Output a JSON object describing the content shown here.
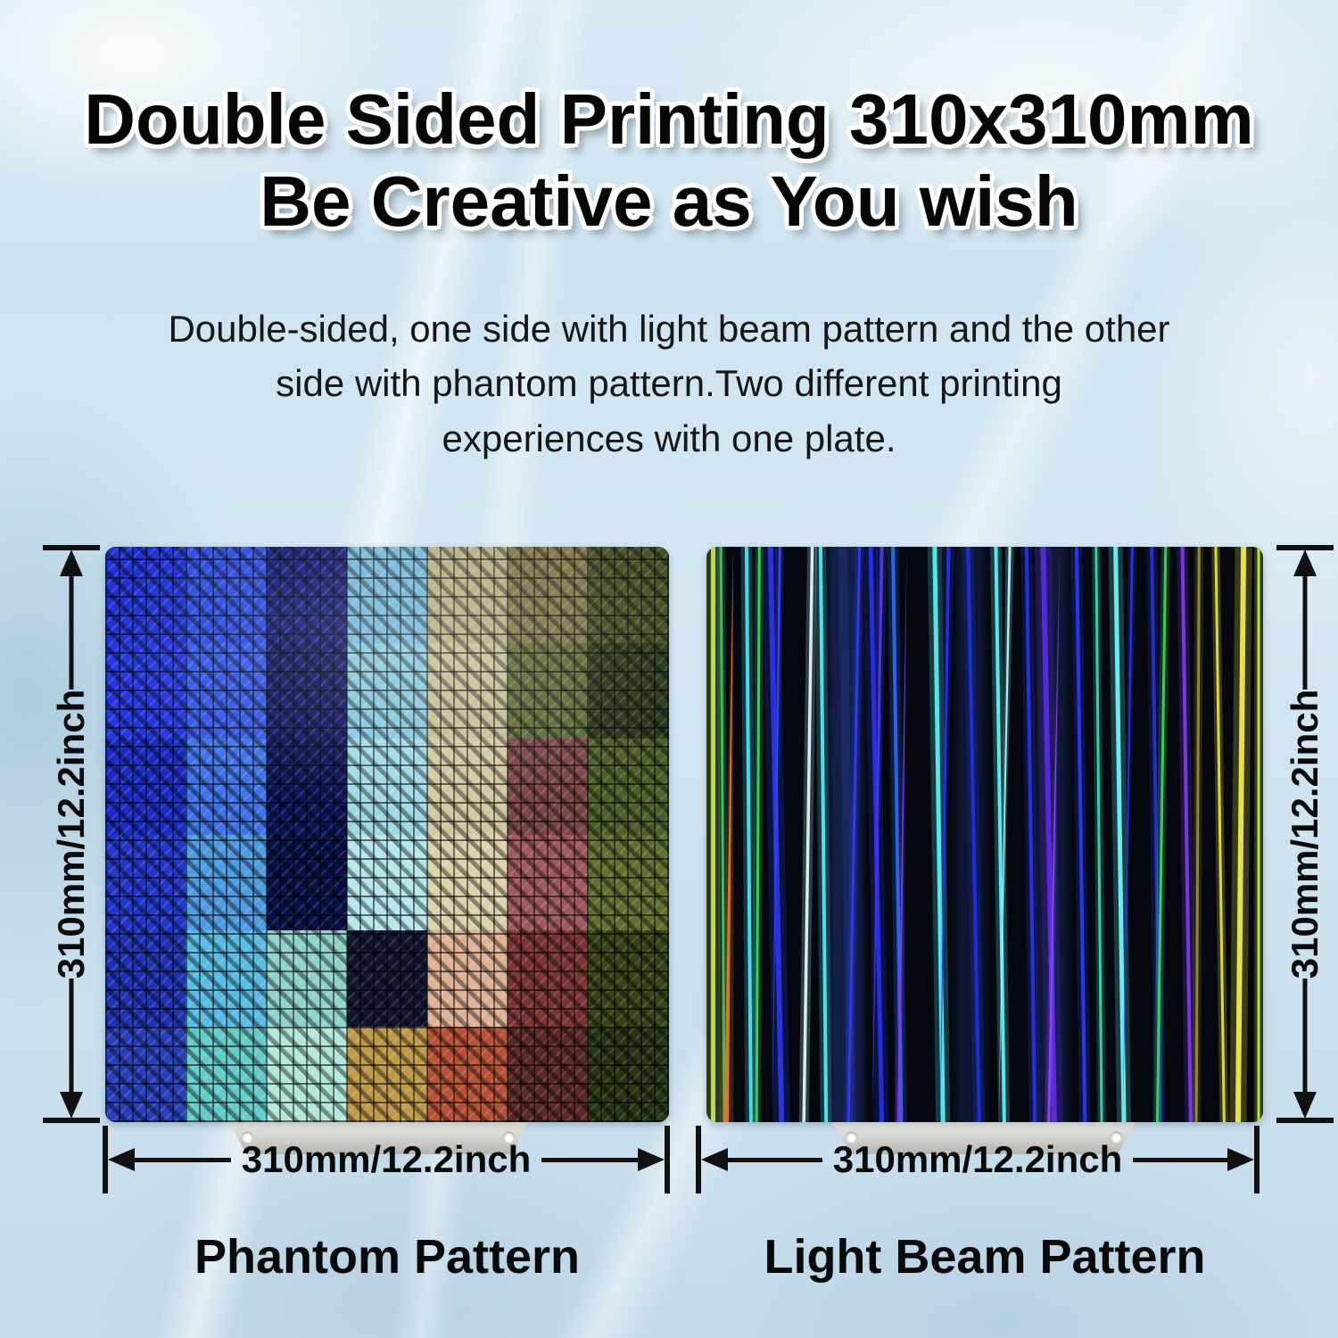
{
  "title": {
    "line1": "Double Sided Printing 310x310mm",
    "line2": "Be Creative as You wish"
  },
  "subtitle": {
    "lines": [
      "Double-sided, one side with light beam pattern and the other",
      "side with phantom pattern.Two different printing",
      "experiences with one plate."
    ]
  },
  "dimensions": {
    "left_height": "310mm/12.2inch",
    "left_width": "310mm/12.2inch",
    "right_height": "310mm/12.2inch",
    "right_width": "310mm/12.2inch"
  },
  "plates": {
    "left": {
      "label": "Phantom Pattern",
      "pattern_grid": [
        [
          "#1f33d6",
          "#2a4be0",
          "#131c7a",
          "#6fb6d8",
          "#b4ae7e",
          "#7f7444",
          "#454f22"
        ],
        [
          "#2438e0",
          "#3358e8",
          "#0f1866",
          "#84c8dc",
          "#c6bd92",
          "#5d6c34",
          "#2c381a"
        ],
        [
          "#1b2cc4",
          "#3f74e8",
          "#0c145a",
          "#9edae6",
          "#d2c8a0",
          "#7c4648",
          "#4e602a"
        ],
        [
          "#2137cc",
          "#4f9ce4",
          "#0a1148",
          "#b4e8ec",
          "#dcd2aa",
          "#a05a5e",
          "#5f7030"
        ],
        [
          "#1e32b4",
          "#58bce4",
          "#8ed4cc",
          "#12172e",
          "#e0b294",
          "#7c3434",
          "#364418"
        ],
        [
          "#2640bc",
          "#64ccca",
          "#b2e8da",
          "#c09a48",
          "#b85236",
          "#5c2a26",
          "#283614"
        ]
      ]
    },
    "right": {
      "label": "Light Beam Pattern",
      "background": "#06080f",
      "beams": [
        {
          "t": 1.2,
          "b": 1.2,
          "w": 5,
          "c": "#c6e83c",
          "taper": "none"
        },
        {
          "t": 2.6,
          "b": 3.2,
          "w": 3,
          "c": "#35c86a",
          "taper": "none"
        },
        {
          "t": 4.8,
          "b": 3.6,
          "w": 5,
          "c": "#e87a22",
          "taper": "top"
        },
        {
          "t": 7.2,
          "b": 8.0,
          "w": 4,
          "c": "#4ae4f0",
          "taper": "none"
        },
        {
          "t": 9.5,
          "b": 9.0,
          "w": 3,
          "c": "#38d860",
          "taper": "none"
        },
        {
          "t": 11.5,
          "b": 13.5,
          "w": 6,
          "c": "#2a35e8",
          "taper": "none"
        },
        {
          "t": 13.2,
          "b": 11.8,
          "w": 3,
          "c": "#3a46f0",
          "taper": "bottom"
        },
        {
          "t": 19.0,
          "b": 17.5,
          "w": 3.5,
          "c": "#d8f8ff",
          "taper": "none"
        },
        {
          "t": 20.5,
          "b": 21.5,
          "w": 4,
          "c": "#52e8f5",
          "taper": "none"
        },
        {
          "t": 24.5,
          "b": 26.0,
          "w": 10,
          "c": "#1b2a66",
          "o": 0.9,
          "taper": "none"
        },
        {
          "t": 27.5,
          "b": 25.5,
          "w": 3,
          "c": "#2e3cf0",
          "taper": "none"
        },
        {
          "t": 29.5,
          "b": 31.5,
          "w": 5,
          "c": "#2633e8",
          "taper": "none"
        },
        {
          "t": 31.5,
          "b": 29.8,
          "w": 4,
          "c": "#4a3ae8",
          "taper": "bottom"
        },
        {
          "t": 33.5,
          "b": 35.0,
          "w": 4,
          "c": "#2a6af0",
          "taper": "none"
        },
        {
          "t": 36.0,
          "b": 34.5,
          "w": 3,
          "c": "#7a3ce8",
          "taper": "top"
        },
        {
          "t": 41.0,
          "b": 42.5,
          "w": 5,
          "c": "#55eef8",
          "taper": "none"
        },
        {
          "t": 43.5,
          "b": 42.0,
          "w": 4,
          "c": "#2633e8",
          "taper": "bottom"
        },
        {
          "t": 47.0,
          "b": 49.0,
          "w": 4,
          "c": "#2030d8",
          "taper": "none"
        },
        {
          "t": 52.0,
          "b": 53.5,
          "w": 4,
          "c": "#60f0fa",
          "taper": "none"
        },
        {
          "t": 54.5,
          "b": 52.5,
          "w": 3,
          "c": "#aef8ff",
          "taper": "bottom"
        },
        {
          "t": 57.5,
          "b": 59.0,
          "w": 4,
          "c": "#2835e0",
          "taper": "none"
        },
        {
          "t": 60.5,
          "b": 62.5,
          "w": 6,
          "c": "#5a2ae0",
          "taper": "none"
        },
        {
          "t": 63.5,
          "b": 61.5,
          "w": 3,
          "c": "#8a4af0",
          "taper": "top"
        },
        {
          "t": 66.5,
          "b": 68.0,
          "w": 4,
          "c": "#2a3af0",
          "taper": "none"
        },
        {
          "t": 70.0,
          "b": 71.0,
          "w": 3,
          "c": "#3ad8b0",
          "taper": "none"
        },
        {
          "t": 73.5,
          "b": 75.0,
          "w": 5,
          "c": "#6ef4fc",
          "taper": "none"
        },
        {
          "t": 76.5,
          "b": 74.8,
          "w": 3,
          "c": "#2a35e8",
          "taper": "bottom"
        },
        {
          "t": 80.0,
          "b": 81.5,
          "w": 4,
          "c": "#2630c8",
          "taper": "none"
        },
        {
          "t": 82.5,
          "b": 81.0,
          "w": 3,
          "c": "#3ed45e",
          "taper": "none"
        },
        {
          "t": 85.5,
          "b": 87.0,
          "w": 4,
          "c": "#7a3ce8",
          "taper": "none"
        },
        {
          "t": 88.5,
          "b": 88.0,
          "w": 3,
          "c": "#b8a83c",
          "o": 0.8,
          "taper": "none"
        },
        {
          "t": 91.5,
          "b": 93.0,
          "w": 3,
          "c": "#e8e23a",
          "taper": "none"
        },
        {
          "t": 96.5,
          "b": 95.5,
          "w": 6,
          "c": "#f0ea4a",
          "taper": "none"
        },
        {
          "t": 99.2,
          "b": 99.2,
          "w": 3,
          "c": "#c8e83c",
          "taper": "none"
        }
      ]
    }
  },
  "colors": {
    "background_base": "#d2e6f1",
    "arrow": "#111111",
    "title_text": "#060606",
    "title_outline": "#ffffff",
    "body_text": "#161616",
    "metal_light": "#f4f3f0",
    "metal_dark": "#b5b4ae"
  }
}
